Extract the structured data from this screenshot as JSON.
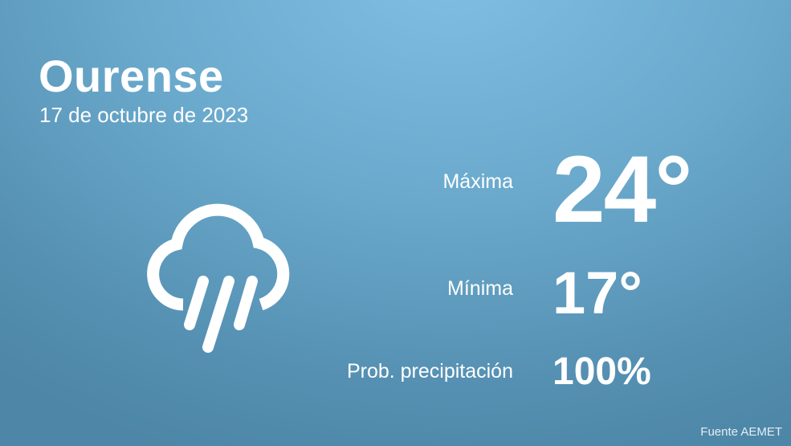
{
  "location": {
    "city": "Ourense",
    "date": "17 de octubre de 2023"
  },
  "weather": {
    "icon": "rain-cloud-icon",
    "max_label": "Máxima",
    "max_value": "24°",
    "min_label": "Mínima",
    "min_value": "17°",
    "precip_label": "Prob. precipitación",
    "precip_value": "100%"
  },
  "source": "Fuente AEMET",
  "colors": {
    "background_top": "#80c0e4",
    "background_bottom": "#4d86a6",
    "text": "#ffffff"
  }
}
